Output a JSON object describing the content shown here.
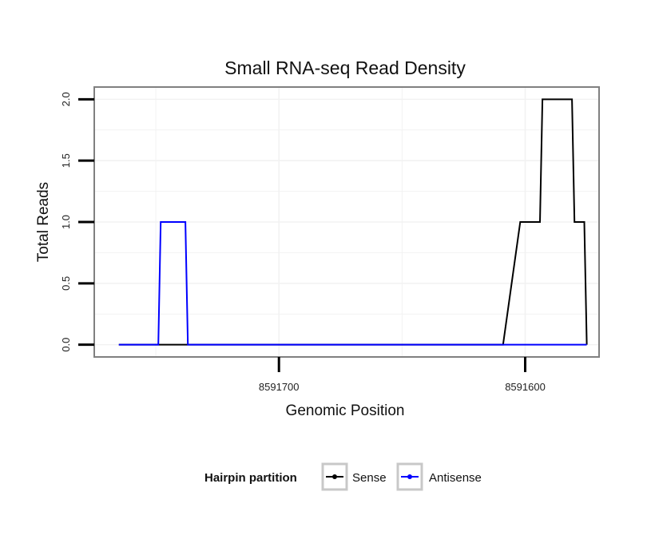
{
  "chart_data": {
    "type": "line",
    "title": "Small RNA-seq Read Density",
    "xlabel": "Genomic Position",
    "ylabel": "Total Reads",
    "x_reversed": true,
    "xlim": [
      8591775,
      8591570
    ],
    "ylim": [
      -0.1,
      2.1
    ],
    "x_ticks": [
      8591700,
      8591600
    ],
    "x_tick_labels": [
      "8591700",
      "8591600"
    ],
    "y_ticks": [
      0,
      0.5,
      1,
      1.5,
      2
    ],
    "y_tick_labels": [
      "0.0",
      "0.5",
      "1.0",
      "1.5",
      "2.0"
    ],
    "grid": true,
    "legend": {
      "title": "Hairpin partition",
      "position": "bottom"
    },
    "series": [
      {
        "name": "Sense",
        "color": "#000000",
        "x": [
          8591765,
          8591712,
          8591609,
          8591602,
          8591601,
          8591594,
          8591593,
          8591581,
          8591580,
          8591576,
          8591575
        ],
        "y": [
          0,
          0,
          0,
          1,
          1,
          1,
          2,
          2,
          1,
          1,
          0
        ]
      },
      {
        "name": "Antisense",
        "color": "#0000ff",
        "x": [
          8591765,
          8591749,
          8591748,
          8591738,
          8591737,
          8591575
        ],
        "y": [
          0,
          0,
          1,
          1,
          0,
          0
        ]
      }
    ]
  }
}
